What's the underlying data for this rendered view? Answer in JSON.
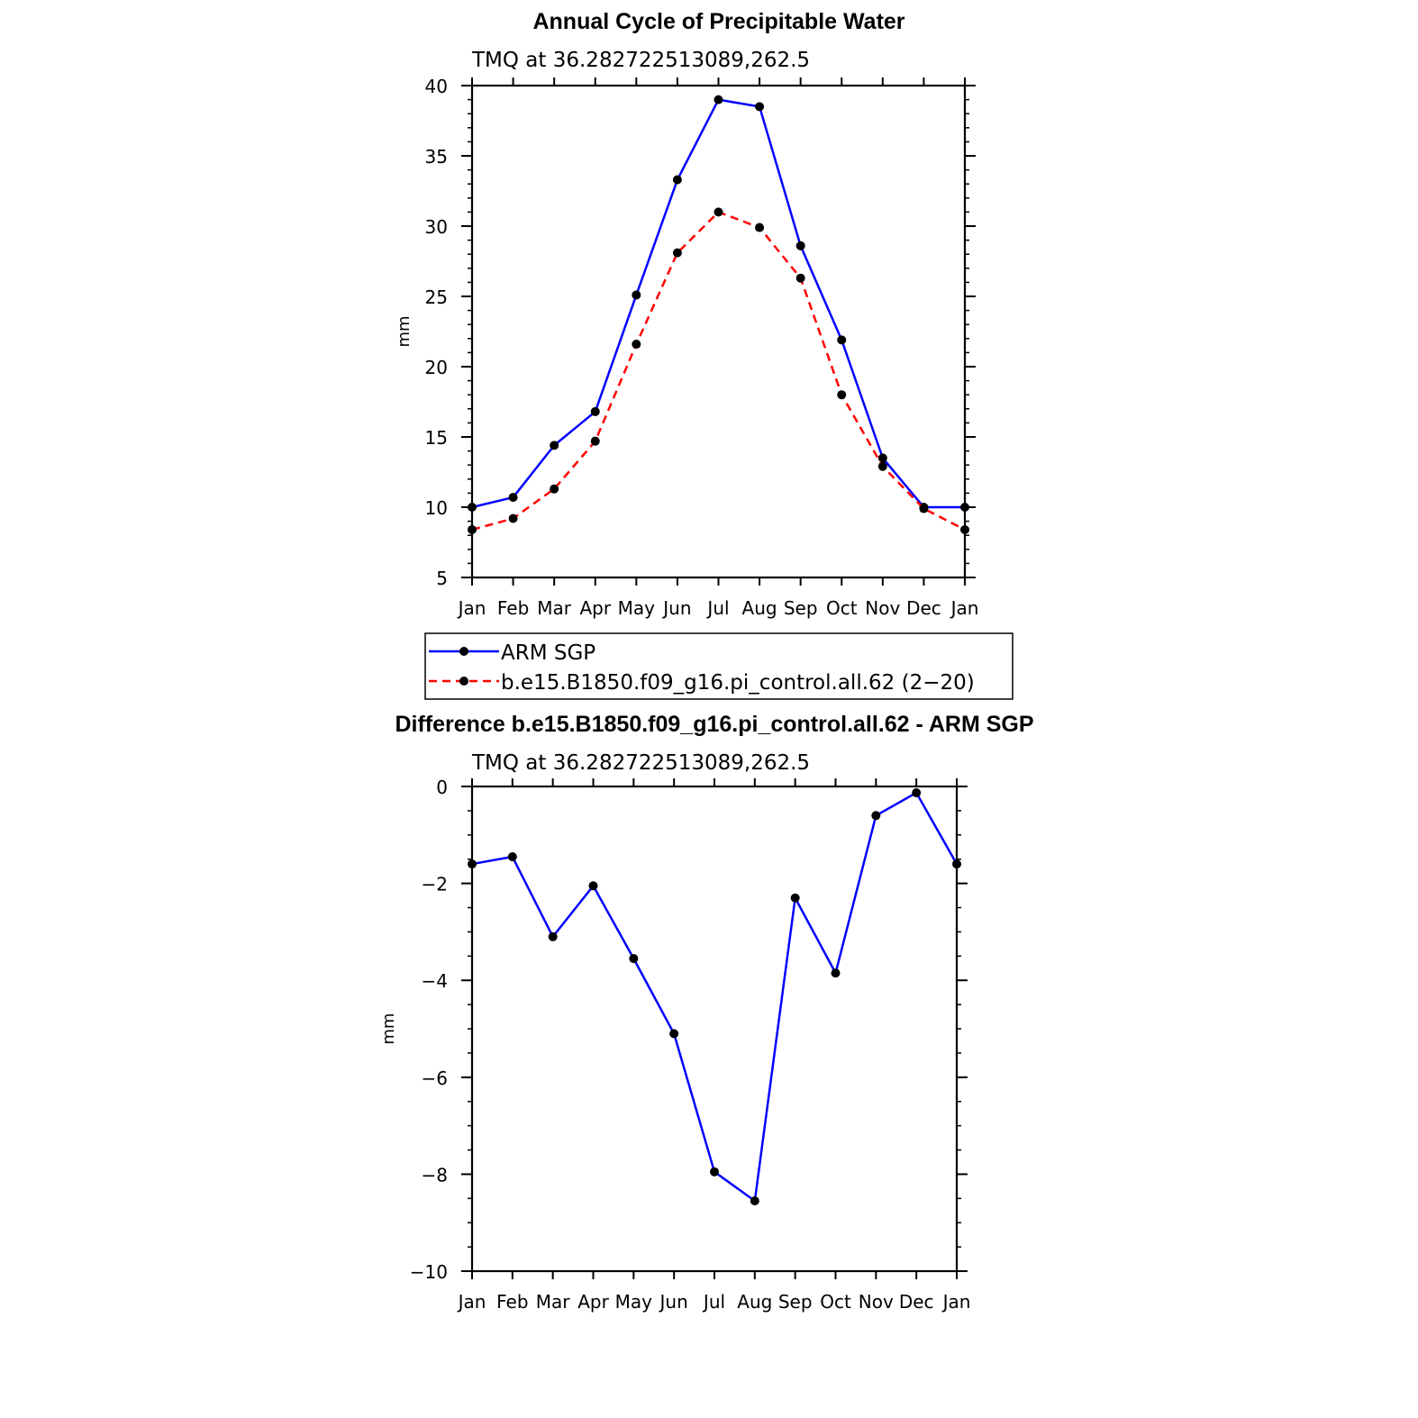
{
  "chart_data": [
    {
      "type": "line",
      "title": "Annual Cycle of Precipitable Water",
      "subtitle": "TMQ  at  36.282722513089,262.5",
      "xlabel": "",
      "ylabel": "mm",
      "categories": [
        "Jan",
        "Feb",
        "Mar",
        "Apr",
        "May",
        "Jun",
        "Jul",
        "Aug",
        "Sep",
        "Oct",
        "Nov",
        "Dec",
        "Jan"
      ],
      "ylim": [
        5,
        40
      ],
      "yticks": [
        5,
        10,
        15,
        20,
        25,
        30,
        35,
        40
      ],
      "grid": false,
      "legend_position": "below-plot",
      "series": [
        {
          "name": "ARM  SGP",
          "color": "#0000ff",
          "dash": "solid",
          "marker": "filled-circle",
          "values": [
            10.0,
            10.7,
            14.4,
            16.8,
            25.1,
            33.3,
            39.0,
            38.5,
            28.6,
            21.9,
            13.5,
            10.0,
            10.0
          ]
        },
        {
          "name": "b.e15.B1850.f09_g16.pi_control.all.62  (2−20)",
          "color": "#ff0000",
          "dash": "dashed",
          "marker": "filled-circle",
          "values": [
            8.4,
            9.2,
            11.3,
            14.7,
            21.6,
            28.1,
            31.0,
            29.9,
            26.3,
            18.0,
            12.9,
            9.9,
            8.4
          ]
        }
      ]
    },
    {
      "type": "line",
      "title": "Difference b.e15.B1850.f09_g16.pi_control.all.62 - ARM SGP",
      "subtitle": "TMQ  at  36.282722513089,262.5",
      "xlabel": "",
      "ylabel": "mm",
      "categories": [
        "Jan",
        "Feb",
        "Mar",
        "Apr",
        "May",
        "Jun",
        "Jul",
        "Aug",
        "Sep",
        "Oct",
        "Nov",
        "Dec",
        "Jan"
      ],
      "ylim": [
        -10,
        0
      ],
      "yticks": [
        -10,
        -8,
        -6,
        -4,
        -2,
        0
      ],
      "ytick_labels": [
        "−10",
        "−8",
        "−6",
        "−4",
        "−2",
        "0"
      ],
      "grid": false,
      "series": [
        {
          "color": "#0000ff",
          "dash": "solid",
          "marker": "filled-circle",
          "values": [
            -1.6,
            -1.45,
            -3.1,
            -2.05,
            -3.55,
            -5.1,
            -7.95,
            -8.55,
            -2.3,
            -3.85,
            -0.6,
            -0.13,
            -1.6
          ]
        }
      ]
    }
  ]
}
